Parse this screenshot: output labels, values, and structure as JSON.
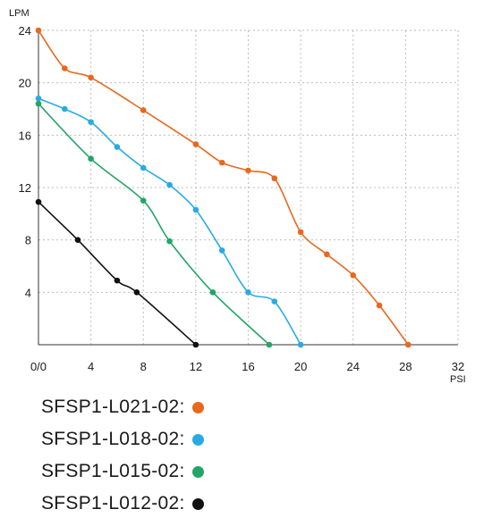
{
  "chart_data": {
    "type": "line",
    "ylabel": "LPM",
    "xlabel": "PSI",
    "xlim": [
      0,
      32
    ],
    "ylim": [
      0,
      24
    ],
    "x_ticks": [
      "0/0",
      "4",
      "8",
      "12",
      "16",
      "20",
      "24",
      "28",
      "32"
    ],
    "y_ticks": [
      "24",
      "20",
      "16",
      "12",
      "8",
      "4"
    ],
    "grid": true,
    "series": [
      {
        "name": "SFSP1-L021-02:",
        "color": "#e8681e",
        "points": [
          [
            0,
            24
          ],
          [
            2,
            21.1
          ],
          [
            4,
            20.4
          ],
          [
            8,
            17.9
          ],
          [
            12,
            15.3
          ],
          [
            14,
            13.9
          ],
          [
            16,
            13.3
          ],
          [
            18,
            12.7
          ],
          [
            20,
            8.6
          ],
          [
            22,
            6.9
          ],
          [
            24,
            5.3
          ],
          [
            26,
            3.0
          ],
          [
            28.2,
            0
          ]
        ]
      },
      {
        "name": "SFSP1-L018-02:",
        "color": "#29abe2",
        "points": [
          [
            0,
            18.8
          ],
          [
            2,
            18.0
          ],
          [
            4,
            17.0
          ],
          [
            6,
            15.1
          ],
          [
            8,
            13.5
          ],
          [
            10,
            12.2
          ],
          [
            12,
            10.3
          ],
          [
            14,
            7.2
          ],
          [
            16,
            4.0
          ],
          [
            18,
            3.3
          ],
          [
            20,
            0
          ]
        ]
      },
      {
        "name": "SFSP1-L015-02:",
        "color": "#22a566",
        "points": [
          [
            0,
            18.4
          ],
          [
            4,
            14.2
          ],
          [
            8,
            11.0
          ],
          [
            10,
            7.9
          ],
          [
            13.3,
            4.0
          ],
          [
            17.6,
            0
          ]
        ]
      },
      {
        "name": "SFSP1-L012-02:",
        "color": "#111111",
        "points": [
          [
            0,
            10.9
          ],
          [
            3,
            8.0
          ],
          [
            6,
            4.9
          ],
          [
            7.5,
            4.0
          ],
          [
            12,
            0
          ]
        ]
      }
    ]
  }
}
